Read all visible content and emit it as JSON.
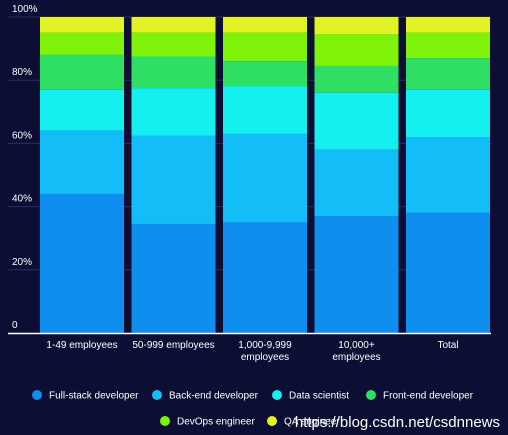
{
  "chart_data": {
    "type": "bar",
    "stacked": true,
    "categories": [
      [
        "1-49 employees"
      ],
      [
        "50-999 employees"
      ],
      [
        "1,000-9,999",
        "employees"
      ],
      [
        "10,000+",
        "employees"
      ],
      [
        "Total"
      ]
    ],
    "series": [
      {
        "name": "Full-stack developer",
        "color": "#0e8ff0",
        "values": [
          44,
          34.5,
          35,
          37,
          38
        ]
      },
      {
        "name": "Back-end developer",
        "color": "#13bdf8",
        "values": [
          20,
          28,
          28,
          21,
          24
        ]
      },
      {
        "name": "Data scientist",
        "color": "#14f0f0",
        "values": [
          13,
          15,
          15,
          18,
          15
        ]
      },
      {
        "name": "Front-end developer",
        "color": "#2fdf63",
        "values": [
          11,
          10,
          8,
          8.5,
          10
        ]
      },
      {
        "name": "DevOps engineer",
        "color": "#7ef208",
        "values": [
          7,
          7.5,
          9,
          10,
          8
        ]
      },
      {
        "name": "QA engineer",
        "color": "#e3f225",
        "values": [
          5,
          5,
          5,
          5.5,
          5
        ]
      }
    ],
    "ylim": [
      0,
      100
    ],
    "yticks": [
      "0",
      "20%",
      "40%",
      "60%",
      "80%",
      "100%"
    ],
    "ytick_values": [
      0,
      20,
      40,
      60,
      80,
      100
    ],
    "grid": true,
    "legend_position": "bottom"
  },
  "watermark": "https://blog.csdn.net/csdnnews"
}
